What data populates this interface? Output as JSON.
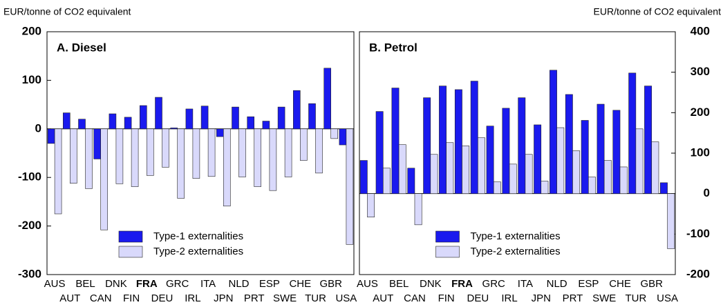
{
  "chart_data": [
    {
      "type": "bar",
      "title": "A. Diesel",
      "y_label": "EUR/tonne of CO2 equivalent",
      "axis_side": "left",
      "categories": [
        "AUS",
        "AUT",
        "BEL",
        "CAN",
        "DNK",
        "FIN",
        "FRA",
        "DEU",
        "GRC",
        "IRL",
        "ITA",
        "JPN",
        "NLD",
        "PRT",
        "ESP",
        "SWE",
        "CHE",
        "TUR",
        "GBR",
        "USA"
      ],
      "highlight_category_index": 6,
      "series": [
        {
          "name": "Type-1 externalities",
          "color": "#1a1aee",
          "values": [
            -30,
            33,
            20,
            -62,
            31,
            24,
            48,
            65,
            2,
            41,
            47,
            -16,
            45,
            25,
            16,
            45,
            79,
            52,
            125,
            -33
          ]
        },
        {
          "name": "Type-2 externalities",
          "color": "#d9d9fb",
          "values": [
            -175,
            -112,
            -123,
            -208,
            -113,
            -119,
            -96,
            -79,
            -143,
            -102,
            -98,
            -159,
            -99,
            -119,
            -127,
            -99,
            -65,
            -91,
            -20,
            -238
          ]
        }
      ],
      "ylim": [
        -300,
        200
      ],
      "yticks": [
        -300,
        -200,
        -100,
        0,
        100,
        200
      ],
      "legend": "lower center"
    },
    {
      "type": "bar",
      "title": "B. Petrol",
      "y_label": "EUR/tonne of CO2 equivalent",
      "axis_side": "right",
      "categories": [
        "AUS",
        "AUT",
        "BEL",
        "CAN",
        "DNK",
        "FIN",
        "FRA",
        "DEU",
        "GRC",
        "IRL",
        "ITA",
        "JPN",
        "NLD",
        "PRT",
        "ESP",
        "SWE",
        "CHE",
        "TUR",
        "GBR",
        "USA"
      ],
      "highlight_category_index": 6,
      "series": [
        {
          "name": "Type-1 externalities",
          "color": "#1a1aee",
          "values": [
            82,
            203,
            261,
            63,
            237,
            266,
            257,
            278,
            167,
            211,
            237,
            170,
            305,
            245,
            181,
            221,
            206,
            298,
            266,
            27
          ]
        },
        {
          "name": "Type-2 externalities",
          "color": "#d9d9fb",
          "values": [
            -58,
            63,
            121,
            -77,
            97,
            126,
            118,
            138,
            29,
            73,
            97,
            31,
            163,
            106,
            41,
            82,
            66,
            160,
            128,
            -136
          ]
        }
      ],
      "ylim": [
        -200,
        400
      ],
      "yticks": [
        -200,
        -100,
        0,
        100,
        200,
        300,
        400
      ],
      "legend": "lower center"
    }
  ]
}
